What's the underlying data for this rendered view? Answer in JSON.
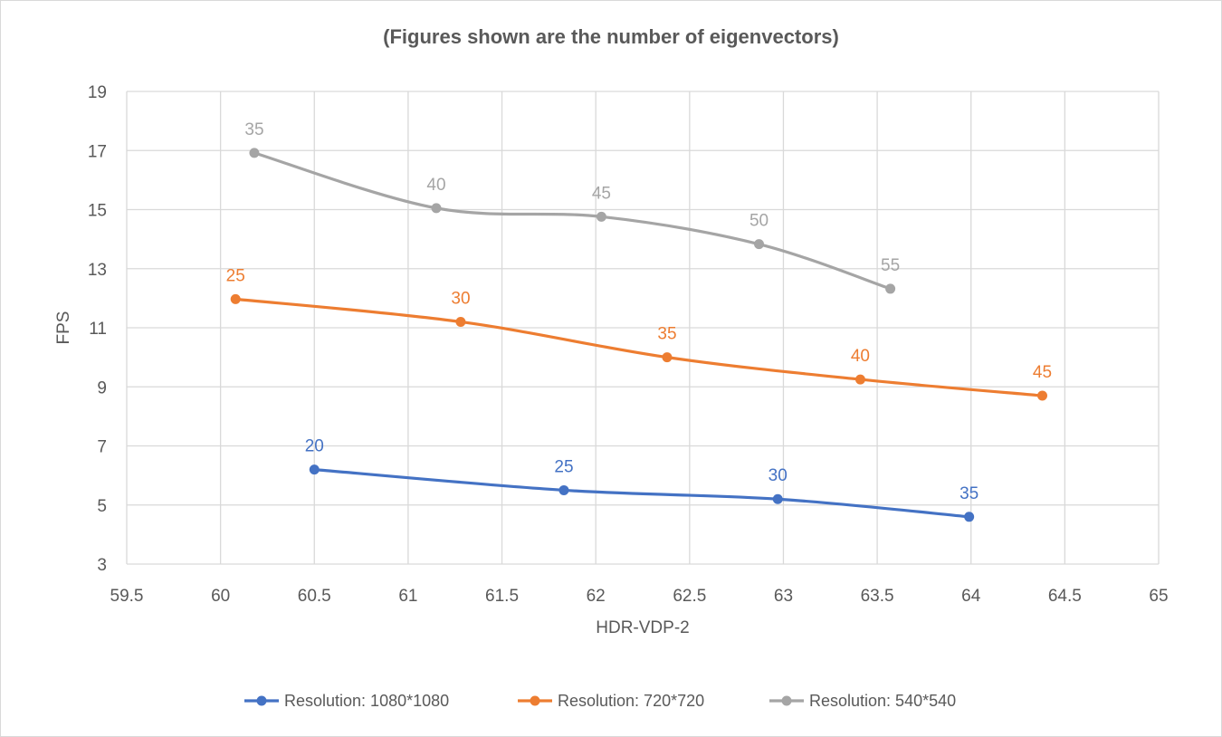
{
  "chart_data": {
    "type": "scatter",
    "title": "(Figures shown are the number of eigenvectors)",
    "xlabel": "HDR-VDP-2",
    "ylabel": "FPS",
    "xlim": [
      59.5,
      65
    ],
    "ylim": [
      3,
      19
    ],
    "x_ticks": [
      59.5,
      60,
      60.5,
      61,
      61.5,
      62,
      62.5,
      63,
      63.5,
      64,
      64.5,
      65
    ],
    "y_ticks": [
      3,
      5,
      7,
      9,
      11,
      13,
      15,
      17,
      19
    ],
    "grid": true,
    "smooth_lines": true,
    "legend_position": "bottom",
    "series": [
      {
        "name": "Resolution: 1080*1080",
        "color": "#4472c4",
        "points": [
          {
            "x": 60.5,
            "y": 6.2,
            "label": "20"
          },
          {
            "x": 61.83,
            "y": 5.5,
            "label": "25"
          },
          {
            "x": 62.97,
            "y": 5.2,
            "label": "30"
          },
          {
            "x": 63.99,
            "y": 4.6,
            "label": "35"
          }
        ]
      },
      {
        "name": "Resolution: 720*720",
        "color": "#ed7d31",
        "points": [
          {
            "x": 60.08,
            "y": 11.97,
            "label": "25"
          },
          {
            "x": 61.28,
            "y": 11.2,
            "label": "30"
          },
          {
            "x": 62.38,
            "y": 10.0,
            "label": "35"
          },
          {
            "x": 63.41,
            "y": 9.25,
            "label": "40"
          },
          {
            "x": 64.38,
            "y": 8.7,
            "label": "45"
          }
        ]
      },
      {
        "name": "Resolution: 540*540",
        "color": "#a5a5a5",
        "points": [
          {
            "x": 60.18,
            "y": 16.92,
            "label": "35"
          },
          {
            "x": 61.15,
            "y": 15.05,
            "label": "40"
          },
          {
            "x": 62.03,
            "y": 14.76,
            "label": "45"
          },
          {
            "x": 62.87,
            "y": 13.83,
            "label": "50"
          },
          {
            "x": 63.57,
            "y": 12.32,
            "label": "55"
          }
        ]
      }
    ]
  }
}
